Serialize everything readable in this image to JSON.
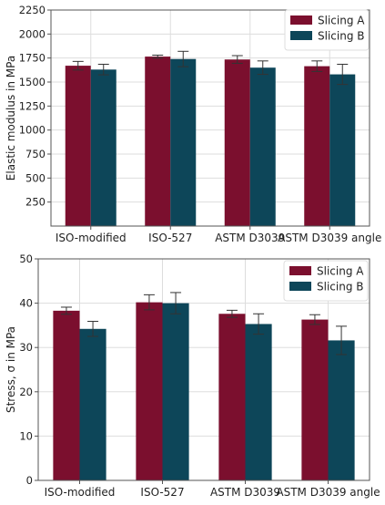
{
  "colors": {
    "series_a": "#7b0f2e",
    "series_b": "#0d4659",
    "error_bar": "#333333",
    "grid": "#dddddd",
    "axis": "#555555"
  },
  "chart_data": [
    {
      "type": "bar",
      "ylabel": "Elastic modulus in MPa",
      "categories": [
        "ISO-modified",
        "ISO-527",
        "ASTM D3039",
        "ASTM D3039 angle"
      ],
      "series": [
        {
          "name": "Slicing A",
          "values": [
            1670,
            1765,
            1735,
            1665
          ],
          "errors": [
            45,
            15,
            40,
            55
          ]
        },
        {
          "name": "Slicing B",
          "values": [
            1630,
            1740,
            1650,
            1580
          ],
          "errors": [
            55,
            80,
            70,
            105
          ]
        }
      ],
      "ylim": [
        0,
        2250
      ],
      "yticks": [
        250,
        500,
        750,
        1000,
        1250,
        1500,
        1750,
        2000,
        2250
      ],
      "grid": true,
      "legend": "top-right"
    },
    {
      "type": "bar",
      "ylabel": "Stress, σ in MPa",
      "categories": [
        "ISO-modified",
        "ISO-527",
        "ASTM D3039",
        "ASTM D3039 angle"
      ],
      "series": [
        {
          "name": "Slicing A",
          "values": [
            38.3,
            40.2,
            37.6,
            36.3
          ],
          "errors": [
            0.8,
            1.7,
            0.8,
            1.1
          ]
        },
        {
          "name": "Slicing B",
          "values": [
            34.2,
            40.0,
            35.3,
            31.6
          ],
          "errors": [
            1.7,
            2.4,
            2.3,
            3.2
          ]
        }
      ],
      "ylim": [
        0,
        50
      ],
      "yticks": [
        0,
        10,
        20,
        30,
        40,
        50
      ],
      "grid": true,
      "legend": "top-right"
    }
  ]
}
